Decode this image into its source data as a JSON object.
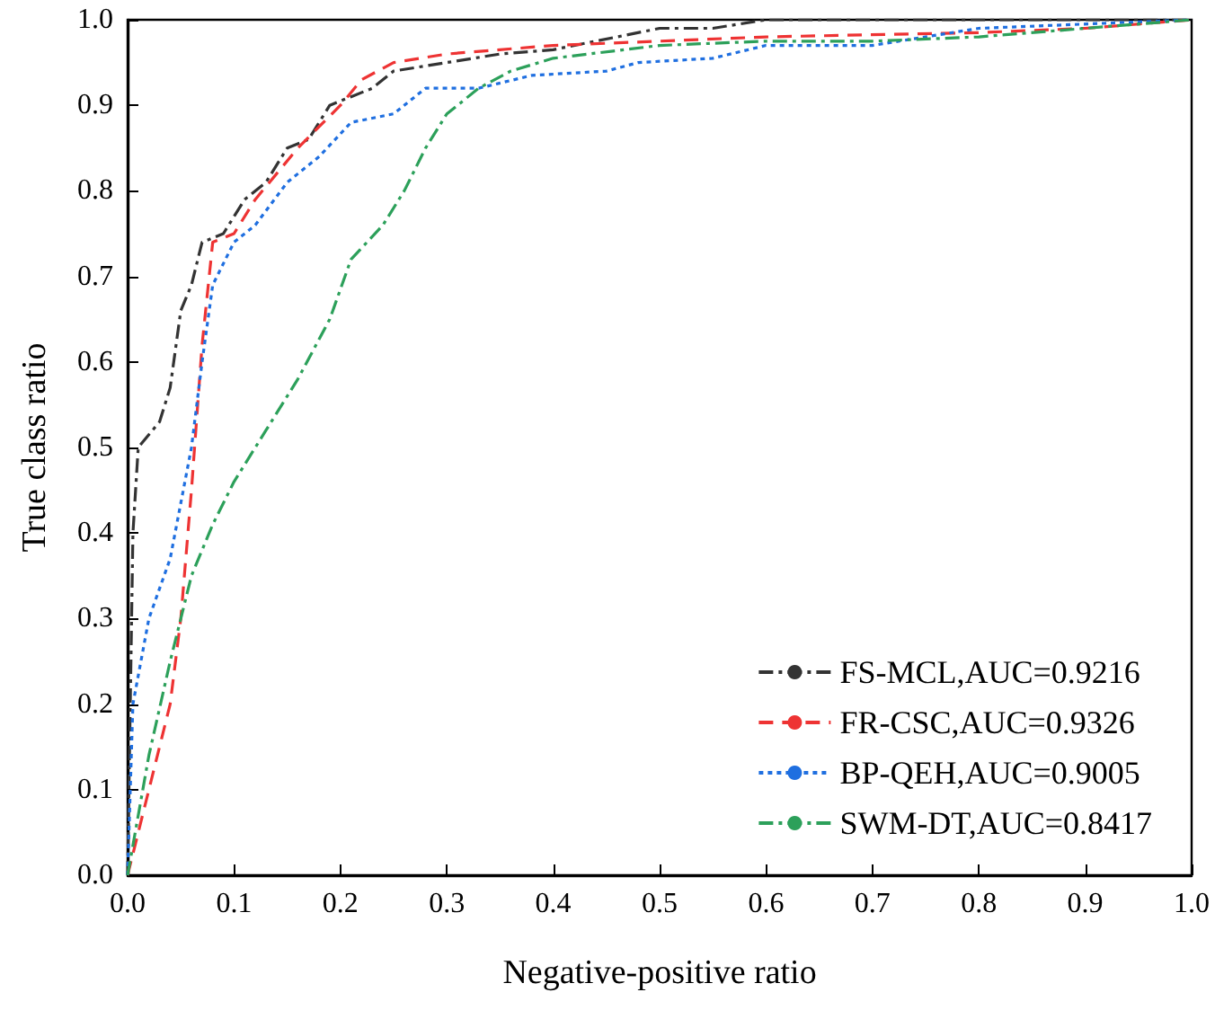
{
  "chart_data": {
    "type": "line",
    "xlabel": "Negative-positive ratio",
    "ylabel": "True class ratio",
    "xlim": [
      0,
      1
    ],
    "ylim": [
      0,
      1
    ],
    "xticks": [
      {
        "value": 0,
        "label": "0.0"
      },
      {
        "value": 0.1,
        "label": "0.1"
      },
      {
        "value": 0.2,
        "label": "0.2"
      },
      {
        "value": 0.3,
        "label": "0.3"
      },
      {
        "value": 0.4,
        "label": "0.4"
      },
      {
        "value": 0.5,
        "label": "0.5"
      },
      {
        "value": 0.6,
        "label": "0.6"
      },
      {
        "value": 0.7,
        "label": "0.7"
      },
      {
        "value": 0.8,
        "label": "0.8"
      },
      {
        "value": 0.9,
        "label": "0.9"
      },
      {
        "value": 1,
        "label": "1.0"
      }
    ],
    "yticks": [
      {
        "value": 0,
        "label": "0.0"
      },
      {
        "value": 0.1,
        "label": "0.1"
      },
      {
        "value": 0.2,
        "label": "0.2"
      },
      {
        "value": 0.3,
        "label": "0.3"
      },
      {
        "value": 0.4,
        "label": "0.4"
      },
      {
        "value": 0.5,
        "label": "0.5"
      },
      {
        "value": 0.6,
        "label": "0.6"
      },
      {
        "value": 0.7,
        "label": "0.7"
      },
      {
        "value": 0.8,
        "label": "0.8"
      },
      {
        "value": 0.9,
        "label": "0.9"
      },
      {
        "value": 1,
        "label": "1.0"
      }
    ],
    "grid": false,
    "legend": "bottom right",
    "marker": "none",
    "series": [
      {
        "name": "FS-MCL,AUC=0.9216",
        "color": "#333333",
        "line_style": "dashdot",
        "x": [
          0,
          0.005,
          0.01,
          0.03,
          0.04,
          0.05,
          0.06,
          0.07,
          0.09,
          0.11,
          0.13,
          0.15,
          0.17,
          0.19,
          0.21,
          0.23,
          0.25,
          0.3,
          0.35,
          0.4,
          0.5,
          0.55,
          0.6,
          1
        ],
        "values": [
          0,
          0.4,
          0.5,
          0.53,
          0.57,
          0.66,
          0.69,
          0.74,
          0.75,
          0.79,
          0.81,
          0.85,
          0.86,
          0.9,
          0.91,
          0.92,
          0.94,
          0.95,
          0.96,
          0.965,
          0.99,
          0.99,
          1,
          1
        ]
      },
      {
        "name": "FR-CSC,AUC=0.9326",
        "color": "#ee3333",
        "line_style": "dashed",
        "x": [
          0,
          0.02,
          0.04,
          0.05,
          0.06,
          0.07,
          0.08,
          0.1,
          0.12,
          0.14,
          0.16,
          0.2,
          0.22,
          0.25,
          0.3,
          0.4,
          0.5,
          0.6,
          0.8,
          0.9,
          1
        ],
        "values": [
          0,
          0.1,
          0.2,
          0.3,
          0.45,
          0.62,
          0.74,
          0.75,
          0.79,
          0.82,
          0.85,
          0.9,
          0.93,
          0.95,
          0.96,
          0.97,
          0.975,
          0.98,
          0.985,
          0.99,
          1
        ]
      },
      {
        "name": "BP-QEH,AUC=0.9005",
        "color": "#1f6fe0",
        "line_style": "dotted",
        "x": [
          0,
          0.005,
          0.02,
          0.04,
          0.06,
          0.07,
          0.08,
          0.1,
          0.12,
          0.15,
          0.18,
          0.21,
          0.25,
          0.28,
          0.33,
          0.38,
          0.45,
          0.48,
          0.55,
          0.6,
          0.7,
          0.75,
          0.8,
          1
        ],
        "values": [
          0,
          0.2,
          0.3,
          0.37,
          0.5,
          0.6,
          0.69,
          0.74,
          0.76,
          0.81,
          0.84,
          0.88,
          0.89,
          0.92,
          0.92,
          0.935,
          0.94,
          0.95,
          0.955,
          0.97,
          0.97,
          0.98,
          0.99,
          1
        ]
      },
      {
        "name": "SWM-DT,AUC=0.8417",
        "color": "#2ca05a",
        "line_style": "dashdot",
        "x": [
          0,
          0.02,
          0.04,
          0.06,
          0.08,
          0.1,
          0.13,
          0.16,
          0.19,
          0.21,
          0.24,
          0.26,
          0.28,
          0.3,
          0.33,
          0.36,
          0.4,
          0.5,
          0.6,
          0.7,
          0.8,
          0.9,
          1
        ],
        "values": [
          0,
          0.14,
          0.25,
          0.35,
          0.41,
          0.46,
          0.52,
          0.58,
          0.65,
          0.72,
          0.76,
          0.8,
          0.85,
          0.89,
          0.92,
          0.94,
          0.955,
          0.97,
          0.975,
          0.975,
          0.98,
          0.99,
          1
        ]
      }
    ]
  }
}
